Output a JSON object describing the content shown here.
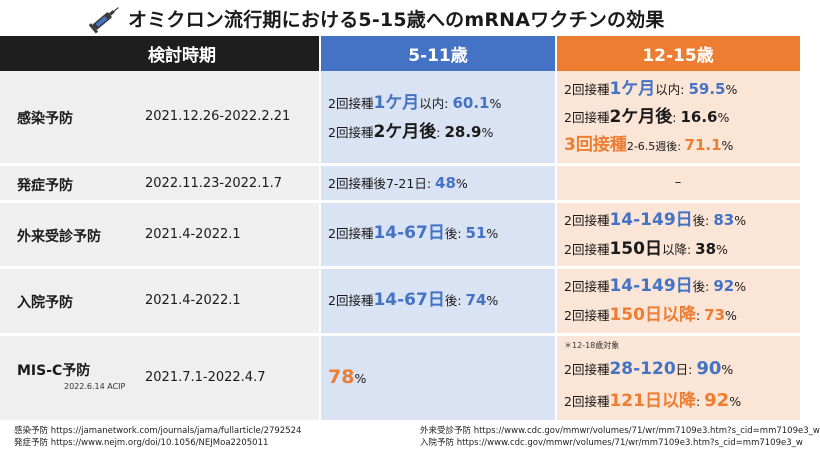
{
  "title": "オミクロン流行期における5-15歳へのmRNAワクチンの効果",
  "colors": {
    "blue": "#4472c4",
    "orange": "#ed7d31"
  },
  "header": {
    "period": "検討時期",
    "age_511": "5-11歳",
    "age_1215": "12-15歳"
  },
  "rows": {
    "infection": {
      "label": "感染予防",
      "period": "2021.12.26-2022.2.21",
      "c511": [
        {
          "p1": "2回接種",
          "p2": "1ケ月",
          "p3": "以内: ",
          "p4": "60.1",
          "p5": "%"
        },
        {
          "p1": "2回接種",
          "p2": "2ケ月後",
          "p3": ": ",
          "p4": "28.9",
          "p5": "%"
        }
      ],
      "c1215": [
        {
          "p1": "2回接種",
          "p2": "1ケ月",
          "p3": "以内: ",
          "p4": "59.5",
          "p5": "%"
        },
        {
          "p1": "2回接種",
          "p2": "2ケ月後",
          "p3": ": ",
          "p4": "16.6",
          "p5": "%"
        },
        {
          "p1": "3回接種",
          "p2": "2-6.5週後: ",
          "p3": "71.1",
          "p4": "%"
        }
      ]
    },
    "onset": {
      "label": "発症予防",
      "period": "2022.11.23-2022.1.7",
      "c511": {
        "p1": "2回接種後7-21日: ",
        "p2": "48",
        "p3": "%"
      },
      "c1215": "–"
    },
    "outpatient": {
      "label": "外来受診予防",
      "period": "2021.4-2022.1",
      "c511": {
        "p1": "2回接種",
        "p2": "14-67日",
        "p3": "後: ",
        "p4": "51",
        "p5": "%"
      },
      "c1215": [
        {
          "p1": "2回接種",
          "p2": "14-149日",
          "p3": "後: ",
          "p4": "83",
          "p5": "%"
        },
        {
          "p1": "2回接種",
          "p2": "150日",
          "p3": "以降: ",
          "p4": "38",
          "p5": "%"
        }
      ]
    },
    "hospital": {
      "label": "入院予防",
      "period": "2021.4-2022.1",
      "c511": {
        "p1": "2回接種",
        "p2": "14-67日",
        "p3": "後: ",
        "p4": "74",
        "p5": "%"
      },
      "c1215": [
        {
          "p1": "2回接種",
          "p2": "14-149日",
          "p3": "後: ",
          "p4": "92",
          "p5": "%"
        },
        {
          "p1": "2回接種",
          "p2": "150日以降",
          "p3": ": ",
          "p4": "73",
          "p5": "%"
        }
      ]
    },
    "misc": {
      "label": "MIS-C予防",
      "sublabel": "2022.6.14 ACIP",
      "period": "2021.7.1-2022.4.7",
      "c511": {
        "p1": "78",
        "p2": "%"
      },
      "note": "＊12-18歳対象",
      "c1215": [
        {
          "p1": "2回接種",
          "p2": "28-120",
          "p3": "日: ",
          "p4": "90",
          "p5": "%"
        },
        {
          "p1": "2回接種",
          "p2": "121日以降",
          "p3": ": ",
          "p4": "92",
          "p5": "%"
        }
      ]
    }
  },
  "footer": {
    "l1": "感染予防 https://jamanetwork.com/journals/jama/fullarticle/2792524",
    "l2": "発症予防 https://www.nejm.org/doi/10.1056/NEJMoa2205011",
    "r1": "外来受診予防 https://www.cdc.gov/mmwr/volumes/71/wr/mm7109e3.htm?s_cid=mm7109e3_w",
    "r2": "入院予防 https://www.cdc.gov/mmwr/volumes/71/wr/mm7109e3.htm?s_cid=mm7109e3_w"
  }
}
